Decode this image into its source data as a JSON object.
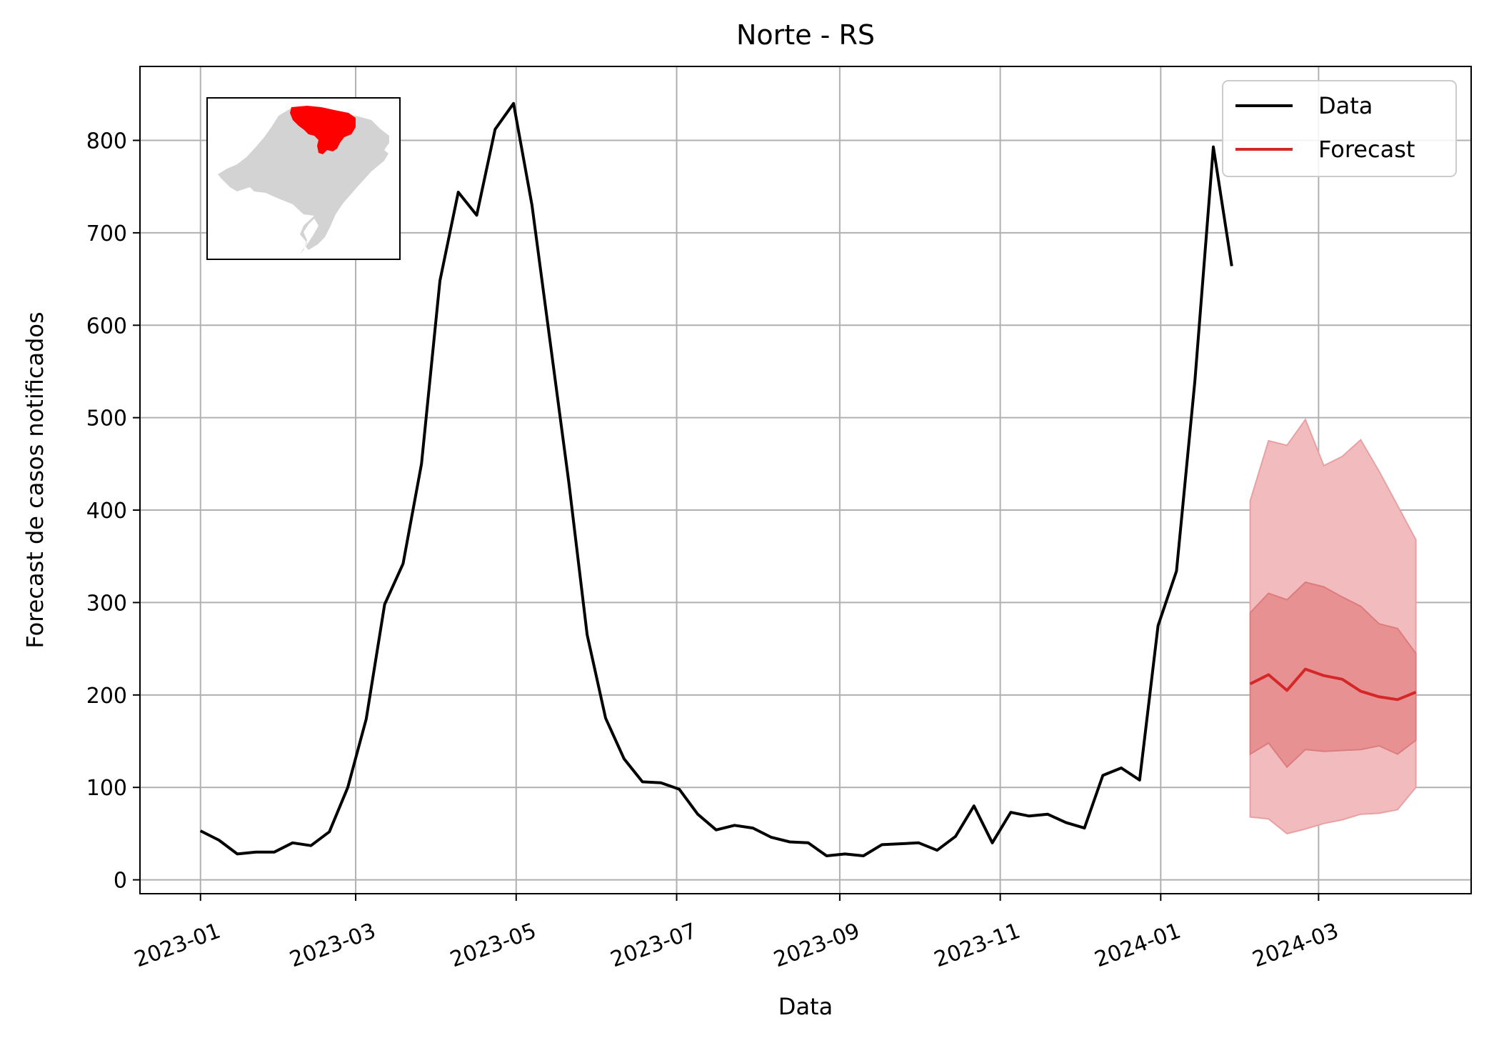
{
  "chart_data": {
    "type": "line",
    "title": "Norte - RS",
    "xlabel": "Data",
    "ylabel": "Forecast de casos notificados",
    "ylim": [
      -15,
      880
    ],
    "xlim": [
      "2022-12-09",
      "2024-04-28"
    ],
    "grid": true,
    "legend": "top-right",
    "y_ticks": [
      0,
      100,
      200,
      300,
      400,
      500,
      600,
      700,
      800
    ],
    "x_ticks": [
      {
        "date": "2023-01-01",
        "label": "2023-01"
      },
      {
        "date": "2023-03-01",
        "label": "2023-03"
      },
      {
        "date": "2023-05-01",
        "label": "2023-05"
      },
      {
        "date": "2023-07-01",
        "label": "2023-07"
      },
      {
        "date": "2023-09-01",
        "label": "2023-09"
      },
      {
        "date": "2023-11-01",
        "label": "2023-11"
      },
      {
        "date": "2024-01-01",
        "label": "2024-01"
      },
      {
        "date": "2024-03-01",
        "label": "2024-03"
      }
    ],
    "colors": {
      "data": "#000000",
      "forecast": "#d62728",
      "band_outer": "#f2bcbe",
      "band_inner": "#e89193",
      "grid": "#b0b0b0",
      "map_region": "#ff0000",
      "map_base": "#d3d3d3"
    },
    "series": [
      {
        "name": "Data",
        "x": [
          "2023-01-01",
          "2023-01-08",
          "2023-01-15",
          "2023-01-22",
          "2023-01-29",
          "2023-02-05",
          "2023-02-12",
          "2023-02-19",
          "2023-02-26",
          "2023-03-05",
          "2023-03-12",
          "2023-03-19",
          "2023-03-26",
          "2023-04-02",
          "2023-04-09",
          "2023-04-16",
          "2023-04-23",
          "2023-04-30",
          "2023-05-07",
          "2023-05-14",
          "2023-05-21",
          "2023-05-28",
          "2023-06-04",
          "2023-06-11",
          "2023-06-18",
          "2023-06-25",
          "2023-07-02",
          "2023-07-09",
          "2023-07-16",
          "2023-07-23",
          "2023-07-30",
          "2023-08-06",
          "2023-08-13",
          "2023-08-20",
          "2023-08-27",
          "2023-09-03",
          "2023-09-10",
          "2023-09-17",
          "2023-09-24",
          "2023-10-01",
          "2023-10-08",
          "2023-10-15",
          "2023-10-22",
          "2023-10-29",
          "2023-11-05",
          "2023-11-12",
          "2023-11-19",
          "2023-11-26",
          "2023-12-03",
          "2023-12-10",
          "2023-12-17",
          "2023-12-24",
          "2023-12-31",
          "2024-01-07",
          "2024-01-14",
          "2024-01-21",
          "2024-01-28"
        ],
        "values": [
          53,
          43,
          28,
          30,
          30,
          40,
          37,
          52,
          100,
          174,
          298,
          342,
          450,
          648,
          744,
          719,
          812,
          840,
          730,
          580,
          430,
          265,
          175,
          131,
          106,
          105,
          98,
          71,
          54,
          59,
          56,
          46,
          41,
          40,
          26,
          28,
          26,
          38,
          39,
          40,
          32,
          47,
          80,
          40,
          73,
          69,
          71,
          62,
          56,
          113,
          121,
          108,
          275,
          334,
          540,
          793,
          664
        ]
      },
      {
        "name": "Forecast",
        "x": [
          "2024-02-04",
          "2024-02-11",
          "2024-02-18",
          "2024-02-25",
          "2024-03-03",
          "2024-03-10",
          "2024-03-17",
          "2024-03-24",
          "2024-03-31",
          "2024-04-07"
        ],
        "values": [
          212,
          222,
          205,
          228,
          221,
          217,
          204,
          198,
          195,
          203
        ],
        "inner_lower": [
          136,
          148,
          122,
          141,
          139,
          140,
          141,
          145,
          136,
          151
        ],
        "inner_upper": [
          289,
          310,
          303,
          322,
          317,
          306,
          296,
          277,
          272,
          245
        ],
        "outer_lower": [
          68,
          66,
          50,
          55,
          61,
          65,
          71,
          72,
          76,
          100
        ],
        "outer_upper": [
          410,
          475,
          470,
          498,
          448,
          458,
          476,
          442,
          405,
          368
        ]
      }
    ]
  }
}
